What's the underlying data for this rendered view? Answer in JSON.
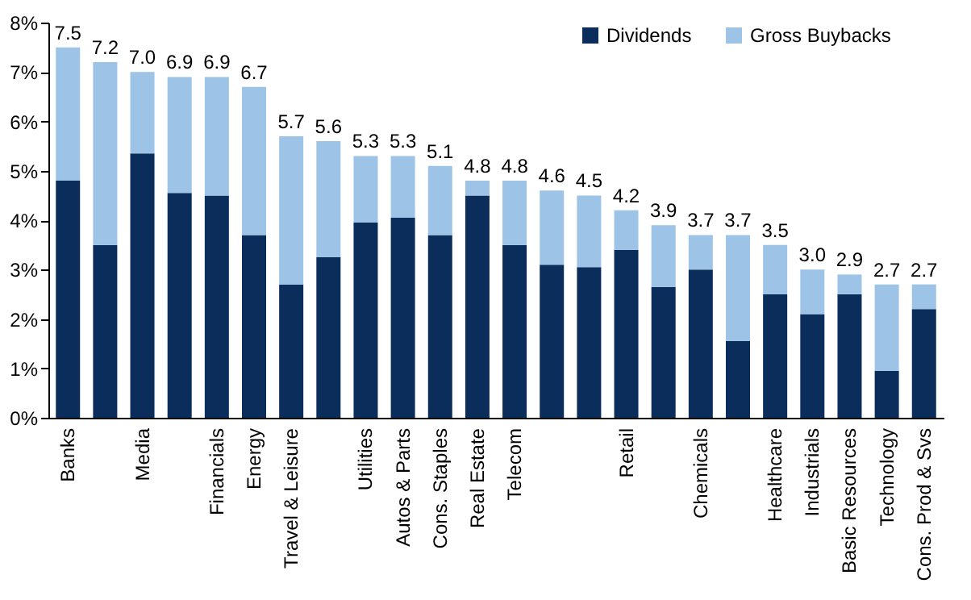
{
  "chart_data": {
    "type": "bar",
    "stacked": true,
    "categories": [
      "Banks",
      null,
      "Media",
      null,
      "Financials",
      "Energy",
      "Travel & Leisure",
      null,
      "Utilities",
      "Autos & Parts",
      "Cons. Staples",
      "Real Estate",
      "Telecom",
      null,
      null,
      "Retail",
      null,
      "Chemicals",
      null,
      "Healthcare",
      "Industrials",
      "Basic Resources",
      "Technology",
      "Cons. Prod & Svs"
    ],
    "series": [
      {
        "name": "Dividends",
        "color": "#0b2d5b",
        "values": [
          4.8,
          3.5,
          5.35,
          4.55,
          4.5,
          3.7,
          2.7,
          3.25,
          3.95,
          4.05,
          3.7,
          4.5,
          3.5,
          3.1,
          3.05,
          3.4,
          2.65,
          3.0,
          1.55,
          2.5,
          2.1,
          2.5,
          0.95,
          2.2
        ]
      },
      {
        "name": "Gross Buybacks",
        "color": "#9dc3e6",
        "values": [
          2.7,
          3.7,
          1.65,
          2.35,
          2.4,
          3.0,
          3.0,
          2.35,
          1.35,
          1.25,
          1.4,
          0.3,
          1.3,
          1.5,
          1.45,
          0.8,
          1.25,
          0.7,
          2.15,
          1.0,
          0.9,
          0.4,
          1.75,
          0.5
        ]
      }
    ],
    "totals": [
      "7.5",
      "7.2",
      "7.0",
      "6.9",
      "6.9",
      "6.7",
      "5.7",
      "5.6",
      "5.3",
      "5.3",
      "5.1",
      "4.8",
      "4.8",
      "4.6",
      "4.5",
      "4.2",
      "3.9",
      "3.7",
      "3.7",
      "3.5",
      "3.0",
      "2.9",
      "2.7",
      "2.7"
    ],
    "ylim": [
      0,
      8
    ],
    "yticks": [
      {
        "value": 0,
        "label": "0%"
      },
      {
        "value": 1,
        "label": "1%"
      },
      {
        "value": 2,
        "label": "2%"
      },
      {
        "value": 3,
        "label": "3%"
      },
      {
        "value": 4,
        "label": "4%"
      },
      {
        "value": 5,
        "label": "5%"
      },
      {
        "value": 6,
        "label": "6%"
      },
      {
        "value": 7,
        "label": "7%"
      },
      {
        "value": 8,
        "label": "8%"
      }
    ],
    "legend": "top right",
    "grid": false
  }
}
